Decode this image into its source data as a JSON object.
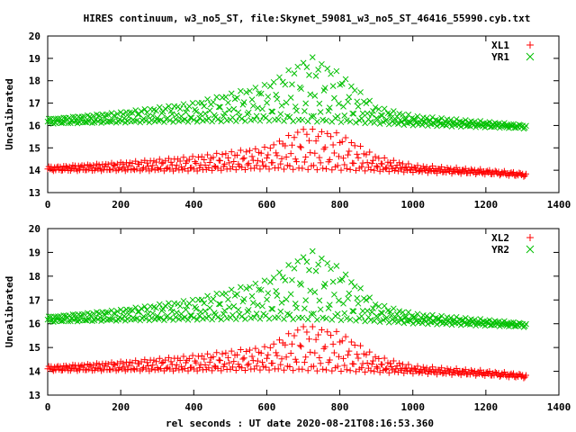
{
  "title": "HIRES continuum, w3_no5_ST, file:Skynet_59081_w3_no5_ST_46416_55990.cyb.txt",
  "xlabel": "rel seconds : UT date 2020-08-21T08:16:53.360",
  "colors": {
    "red": "#ff0000",
    "green": "#00c000",
    "axis": "#000000"
  },
  "chart_data": [
    {
      "type": "scatter",
      "ylabel": "Uncalibrated",
      "xlim": [
        0,
        1400
      ],
      "ylim": [
        13,
        20
      ],
      "xticks": [
        0,
        200,
        400,
        600,
        800,
        1000,
        1200,
        1400
      ],
      "yticks": [
        13,
        14,
        15,
        16,
        17,
        18,
        19,
        20
      ],
      "legend_position": "top-right",
      "series": [
        {
          "name": "YR1",
          "marker": "x",
          "color": "#00c000",
          "x_range": [
            0,
            1310
          ],
          "baseline": [
            [
              0,
              16.1
            ],
            [
              200,
              16.15
            ],
            [
              400,
              16.2
            ],
            [
              600,
              16.25
            ],
            [
              800,
              16.2
            ],
            [
              1000,
              16.05
            ],
            [
              1200,
              15.95
            ],
            [
              1310,
              15.9
            ]
          ],
          "peak": [
            [
              0,
              16.3
            ],
            [
              200,
              16.6
            ],
            [
              400,
              17.0
            ],
            [
              600,
              17.8
            ],
            [
              720,
              19.05
            ],
            [
              800,
              18.3
            ],
            [
              900,
              16.8
            ],
            [
              1000,
              16.4
            ],
            [
              1200,
              16.15
            ],
            [
              1310,
              16.0
            ]
          ]
        },
        {
          "name": "XL1",
          "marker": "+",
          "color": "#ff0000",
          "x_range": [
            0,
            1310
          ],
          "baseline": [
            [
              0,
              14.0
            ],
            [
              200,
              14.0
            ],
            [
              400,
              14.0
            ],
            [
              600,
              14.1
            ],
            [
              800,
              14.05
            ],
            [
              1000,
              13.95
            ],
            [
              1200,
              13.85
            ],
            [
              1310,
              13.75
            ]
          ],
          "peak": [
            [
              0,
              14.15
            ],
            [
              200,
              14.35
            ],
            [
              400,
              14.6
            ],
            [
              600,
              15.0
            ],
            [
              700,
              15.85
            ],
            [
              800,
              15.6
            ],
            [
              900,
              14.6
            ],
            [
              1000,
              14.2
            ],
            [
              1200,
              14.0
            ],
            [
              1310,
              13.85
            ]
          ]
        }
      ]
    },
    {
      "type": "scatter",
      "ylabel": "Uncalibrated",
      "xlim": [
        0,
        1400
      ],
      "ylim": [
        13,
        20
      ],
      "xticks": [
        0,
        200,
        400,
        600,
        800,
        1000,
        1200,
        1400
      ],
      "yticks": [
        13,
        14,
        15,
        16,
        17,
        18,
        19,
        20
      ],
      "legend_position": "top-right",
      "series": [
        {
          "name": "YR2",
          "marker": "x",
          "color": "#00c000",
          "x_range": [
            0,
            1310
          ],
          "baseline": [
            [
              0,
              16.1
            ],
            [
              200,
              16.15
            ],
            [
              400,
              16.2
            ],
            [
              600,
              16.25
            ],
            [
              800,
              16.2
            ],
            [
              1000,
              16.05
            ],
            [
              1200,
              15.95
            ],
            [
              1310,
              15.9
            ]
          ],
          "peak": [
            [
              0,
              16.3
            ],
            [
              200,
              16.6
            ],
            [
              400,
              17.0
            ],
            [
              600,
              17.8
            ],
            [
              720,
              19.05
            ],
            [
              800,
              18.3
            ],
            [
              900,
              16.8
            ],
            [
              1000,
              16.4
            ],
            [
              1200,
              16.15
            ],
            [
              1310,
              16.0
            ]
          ]
        },
        {
          "name": "XL2",
          "marker": "+",
          "color": "#ff0000",
          "x_range": [
            0,
            1310
          ],
          "baseline": [
            [
              0,
              14.05
            ],
            [
              200,
              14.05
            ],
            [
              400,
              14.05
            ],
            [
              600,
              14.1
            ],
            [
              800,
              14.05
            ],
            [
              1000,
              13.95
            ],
            [
              1200,
              13.85
            ],
            [
              1310,
              13.75
            ]
          ],
          "peak": [
            [
              0,
              14.2
            ],
            [
              200,
              14.4
            ],
            [
              400,
              14.65
            ],
            [
              600,
              15.0
            ],
            [
              700,
              15.9
            ],
            [
              800,
              15.6
            ],
            [
              900,
              14.6
            ],
            [
              1000,
              14.2
            ],
            [
              1200,
              14.0
            ],
            [
              1310,
              13.85
            ]
          ]
        }
      ]
    }
  ]
}
